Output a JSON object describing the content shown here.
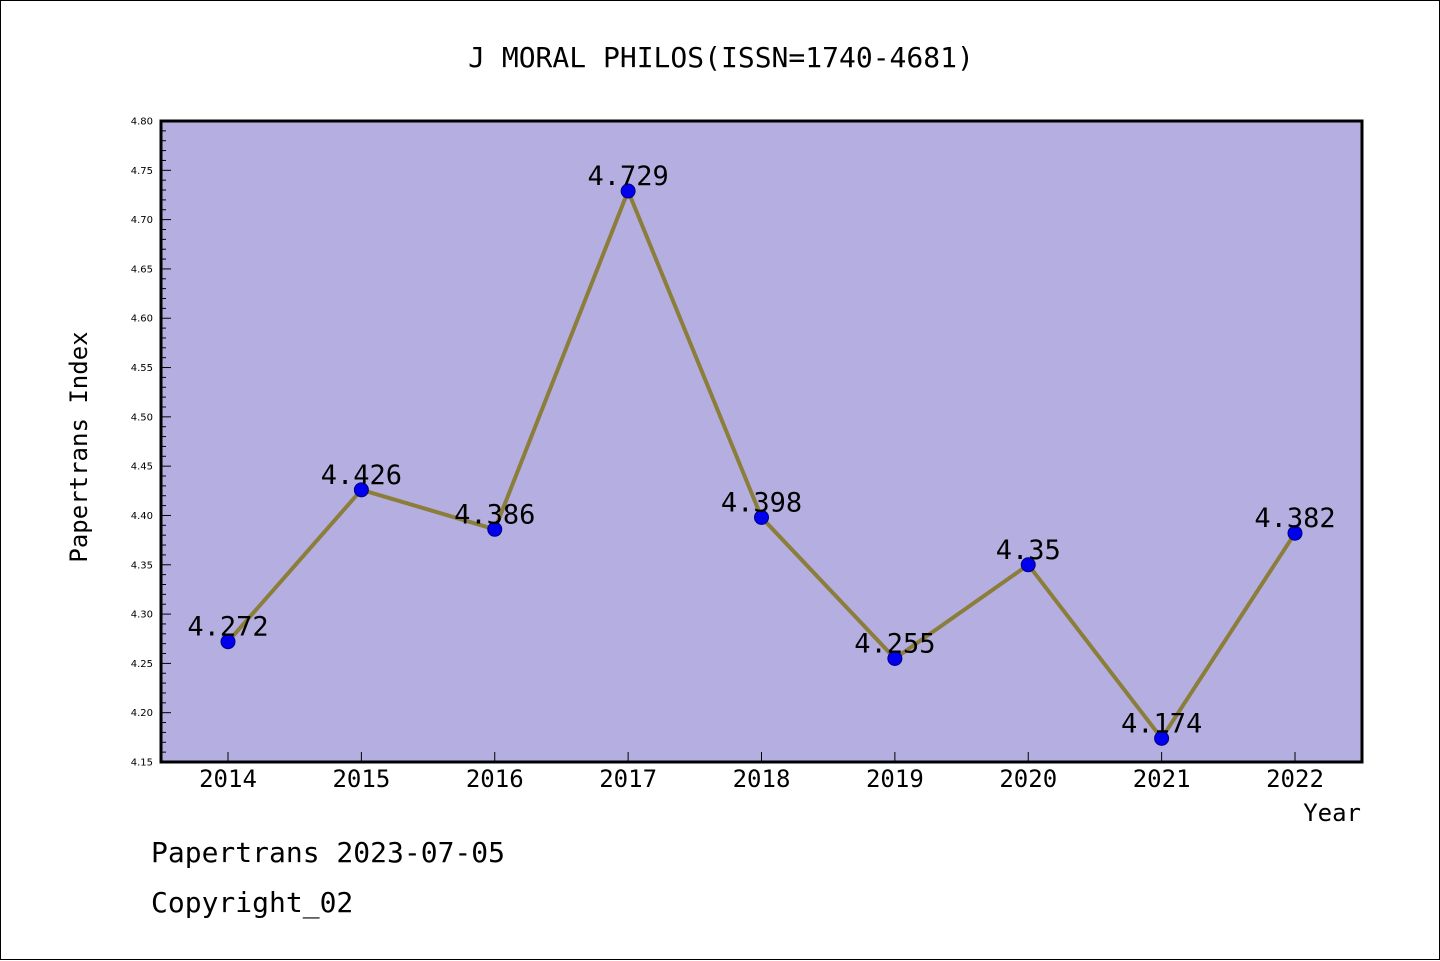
{
  "chart_data": {
    "type": "line",
    "title": "J MORAL PHILOS(ISSN=1740-4681)",
    "xlabel": "Year",
    "ylabel": "Papertrans Index",
    "categories": [
      "2014",
      "2015",
      "2016",
      "2017",
      "2018",
      "2019",
      "2020",
      "2021",
      "2022"
    ],
    "series": [
      {
        "values": [
          4.272,
          4.426,
          4.386,
          4.729,
          4.398,
          4.255,
          4.35,
          4.174,
          4.382
        ]
      }
    ],
    "data_labels": [
      "4.272",
      "4.426",
      "4.386",
      "4.729",
      "4.398",
      "4.255",
      "4.35",
      "4.174",
      "4.382"
    ],
    "ylim": [
      4.15,
      4.8
    ],
    "yticks": [
      "4.15",
      "4.20",
      "4.25",
      "4.30",
      "4.35",
      "4.40",
      "4.45",
      "4.50",
      "4.55",
      "4.60",
      "4.65",
      "4.70",
      "4.75",
      "4.80"
    ],
    "grid": false,
    "colors": {
      "plot_background": "#b5afe1",
      "line": "#8b7d3a",
      "marker": "#0000ee"
    }
  },
  "footer": {
    "line1": "Papertrans 2023-07-05",
    "line2": "Copyright_02"
  }
}
